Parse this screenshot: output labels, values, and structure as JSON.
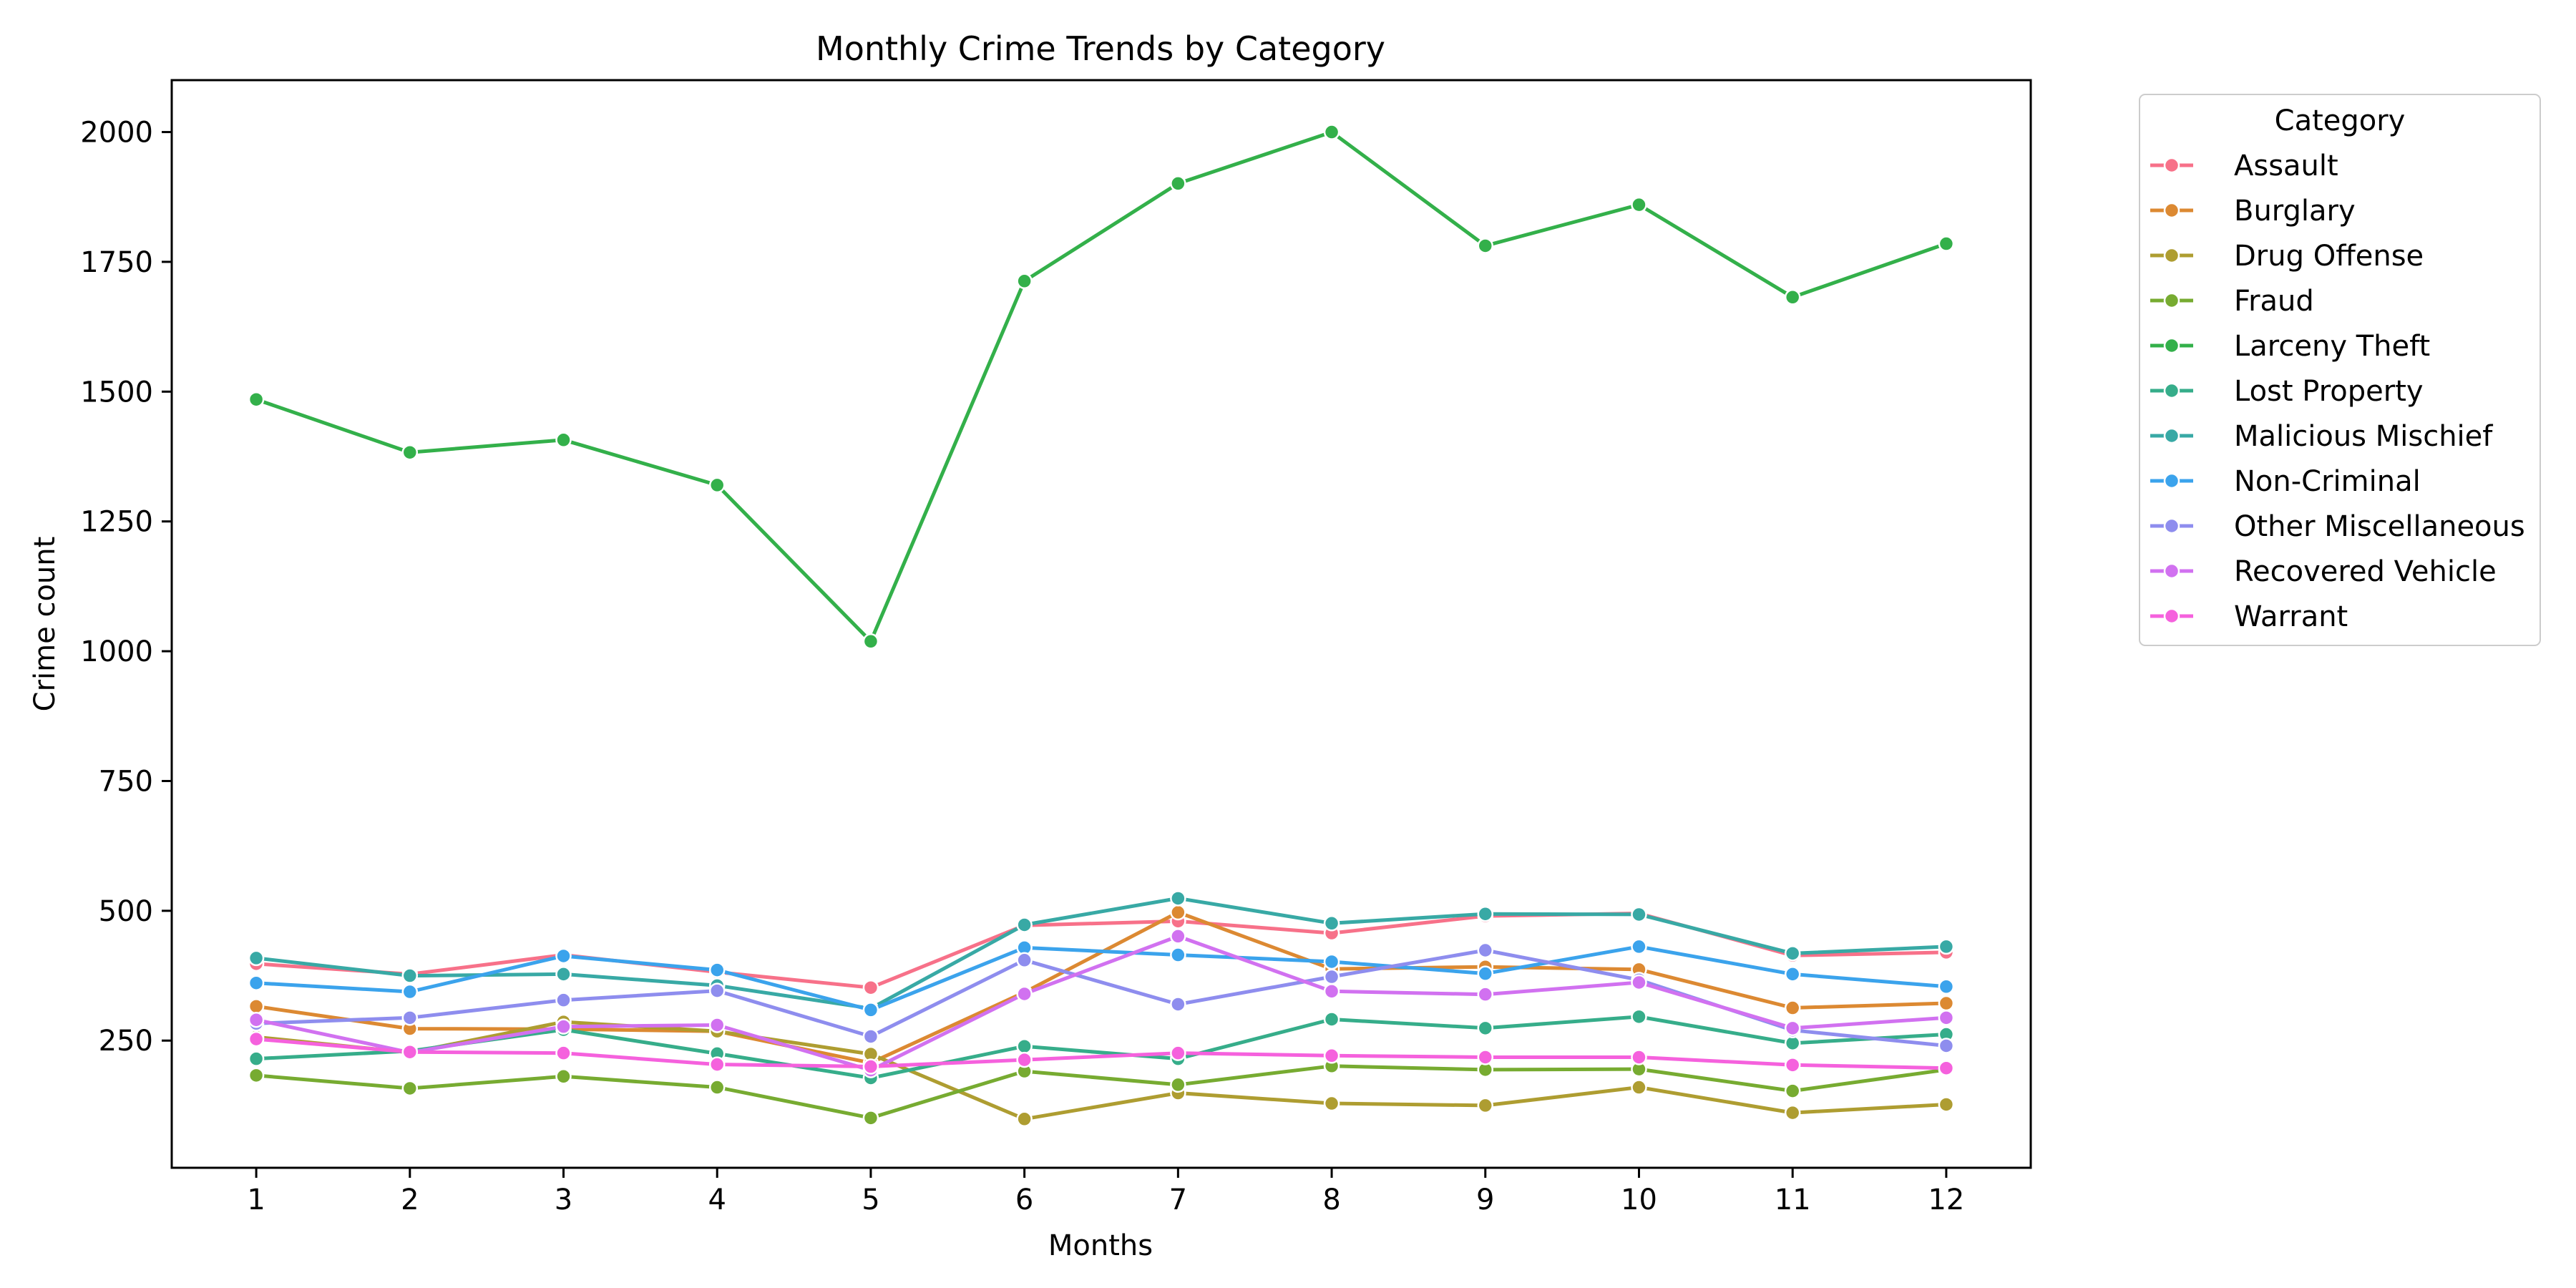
{
  "chart_data": {
    "type": "line",
    "title": "Monthly Crime Trends by Category",
    "xlabel": "Months",
    "ylabel": "Crime count",
    "x": [
      1,
      2,
      3,
      4,
      5,
      6,
      7,
      8,
      9,
      10,
      11,
      12
    ],
    "xticks": [
      "1",
      "2",
      "3",
      "4",
      "5",
      "6",
      "7",
      "8",
      "9",
      "10",
      "11",
      "12"
    ],
    "yticks": [
      "250",
      "500",
      "750",
      "1000",
      "1250",
      "1500",
      "1750",
      "2000"
    ],
    "xlim": [
      0.45,
      12.55
    ],
    "ylim": [
      5,
      2100
    ],
    "grid": false,
    "legend": {
      "title": "Category",
      "placement": "outside-right-top"
    },
    "series": [
      {
        "name": "Assault",
        "color": "#f77189",
        "values": [
          398,
          378,
          415,
          382,
          352,
          472,
          480,
          457,
          490,
          495,
          414,
          420
        ]
      },
      {
        "name": "Burglary",
        "color": "#dc8932",
        "values": [
          316,
          273,
          272,
          268,
          207,
          343,
          497,
          388,
          392,
          387,
          313,
          322
        ]
      },
      {
        "name": "Drug Offense",
        "color": "#ae9d31",
        "values": [
          257,
          227,
          286,
          268,
          224,
          99,
          149,
          129,
          125,
          160,
          111,
          127
        ]
      },
      {
        "name": "Fraud",
        "color": "#77ab31",
        "values": [
          183,
          158,
          181,
          160,
          101,
          191,
          165,
          201,
          194,
          195,
          153,
          194
        ]
      },
      {
        "name": "Larceny Theft",
        "color": "#33b04a",
        "values": [
          1485,
          1383,
          1407,
          1320,
          1019,
          1713,
          1901,
          2000,
          1781,
          1860,
          1682,
          1785
        ]
      },
      {
        "name": "Lost Property",
        "color": "#36ad8a",
        "values": [
          215,
          230,
          271,
          225,
          178,
          239,
          215,
          291,
          274,
          296,
          245,
          262
        ]
      },
      {
        "name": "Malicious Mischief",
        "color": "#38a9a5",
        "values": [
          409,
          375,
          378,
          356,
          312,
          473,
          524,
          476,
          494,
          493,
          418,
          431
        ]
      },
      {
        "name": "Non-Criminal",
        "color": "#3ba3ec",
        "values": [
          361,
          344,
          413,
          386,
          309,
          429,
          415,
          402,
          379,
          431,
          378,
          354
        ]
      },
      {
        "name": "Other Miscellaneous",
        "color": "#8e8dee",
        "values": [
          283,
          294,
          328,
          346,
          258,
          405,
          320,
          373,
          424,
          367,
          270,
          240
        ]
      },
      {
        "name": "Recovered Vehicle",
        "color": "#d171f0",
        "values": [
          290,
          227,
          277,
          280,
          193,
          340,
          451,
          345,
          339,
          362,
          274,
          294
        ]
      },
      {
        "name": "Warrant",
        "color": "#f561dd",
        "values": [
          253,
          228,
          226,
          204,
          200,
          213,
          226,
          221,
          218,
          218,
          203,
          197
        ]
      }
    ]
  }
}
